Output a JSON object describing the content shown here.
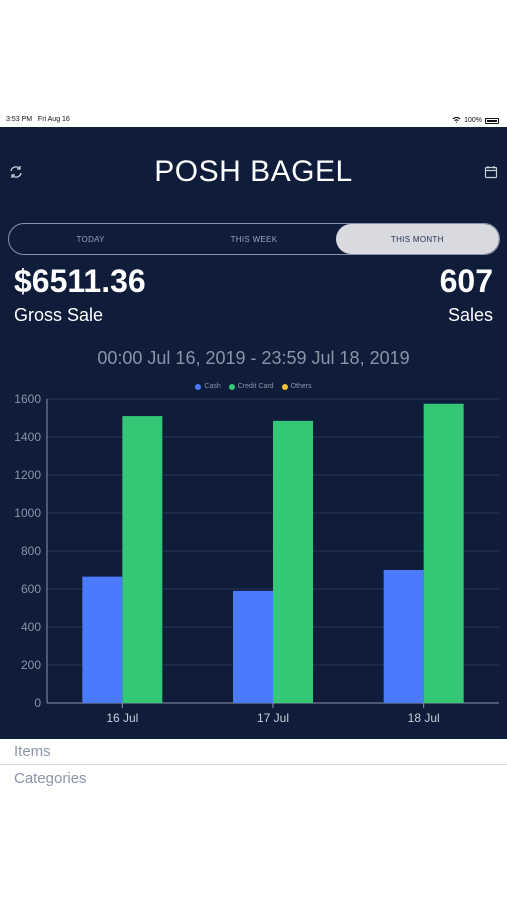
{
  "status_bar": {
    "time": "3:53 PM",
    "date": "Fri Aug 16",
    "battery": "100%"
  },
  "header": {
    "title": "POSH BAGEL",
    "icons": {
      "left": "refresh-icon",
      "right": "calendar-icon"
    }
  },
  "tabs": [
    {
      "label": "TODAY",
      "active": false
    },
    {
      "label": "THIS WEEK",
      "active": false
    },
    {
      "label": "THIS MONTH",
      "active": true
    }
  ],
  "summary": {
    "gross_value": "$6511.36",
    "gross_label": "Gross Sale",
    "sales_value": "607",
    "sales_label": "Sales"
  },
  "range": "00:00 Jul 16, 2019 - 23:59 Jul 18, 2019",
  "colors": {
    "background": "#0f1c3a",
    "cash": "#4a7bff",
    "credit_card": "#33c776",
    "others": "#f0c030",
    "grid": "#26345a"
  },
  "chart_data": {
    "type": "bar",
    "categories": [
      "16 Jul",
      "17 Jul",
      "18 Jul"
    ],
    "series": [
      {
        "name": "Cash",
        "values": [
          665,
          590,
          700
        ]
      },
      {
        "name": "Credit Card",
        "values": [
          1510,
          1485,
          1575
        ]
      },
      {
        "name": "Others",
        "values": [
          0,
          0,
          0
        ]
      }
    ],
    "yticks": [
      "0",
      "200",
      "400",
      "600",
      "800",
      "1000",
      "1200",
      "1400",
      "1600"
    ],
    "ylim": [
      0,
      1600
    ],
    "grid": true,
    "legend_position": "top"
  },
  "bottom_list": [
    "Items",
    "Categories"
  ]
}
